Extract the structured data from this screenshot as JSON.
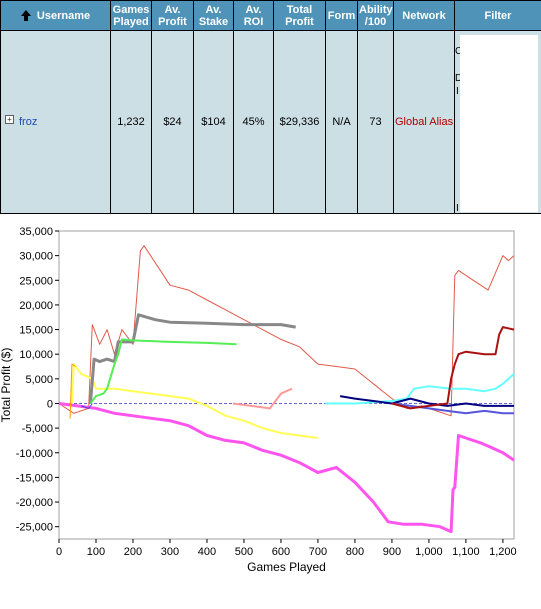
{
  "table": {
    "headers": {
      "username": "Username",
      "games_played": [
        "Games",
        "Played"
      ],
      "av_profit": [
        "Av.",
        "Profit"
      ],
      "av_stake": [
        "Av.",
        "Stake"
      ],
      "av_roi": [
        "Av.",
        "ROI"
      ],
      "total_profit": [
        "Total",
        "Profit"
      ],
      "form": "Form",
      "ability": [
        "Ability",
        "/100"
      ],
      "network": "Network",
      "filter": "Filter"
    },
    "row": {
      "username": "froz",
      "games_played": "1,232",
      "av_profit": "$24",
      "av_stake": "$104",
      "av_roi": "45%",
      "total_profit": "$29,336",
      "form": "N/A",
      "ability": "73",
      "network": "Global Alias"
    },
    "filter_visible_chars": [
      "C",
      "D",
      "I",
      "I"
    ]
  },
  "colors": {
    "header_bg": "#4f94b8",
    "row_bg": "#ccdfe5",
    "link": "#1b4bb0",
    "network": "#b00000"
  },
  "chart_data": {
    "type": "line",
    "xlabel": "Games Played",
    "ylabel": "Total Profit ($)",
    "xlim": [
      0,
      1230
    ],
    "ylim": [
      -27500,
      35000
    ],
    "x_ticks": [
      0,
      100,
      200,
      300,
      400,
      500,
      600,
      700,
      800,
      900,
      1000,
      1100,
      1200
    ],
    "x_tick_labels": [
      "0",
      "100",
      "200",
      "300",
      "400",
      "500",
      "600",
      "700",
      "800",
      "900",
      "1,000",
      "1,100",
      "1,200"
    ],
    "y_ticks": [
      35000,
      30000,
      25000,
      20000,
      15000,
      10000,
      5000,
      0,
      -5000,
      -10000,
      -15000,
      -20000,
      -25000
    ],
    "y_tick_labels": [
      "35,000",
      "30,000",
      "25,000",
      "20,000",
      "15,000",
      "10,000",
      "5,000",
      "0",
      "-5,000",
      "-10,000",
      "-15,000",
      "-20,000",
      "-25,000"
    ],
    "zero_line": true,
    "series": [
      {
        "color": "#e05a4a",
        "width": 1,
        "points": [
          [
            0,
            0
          ],
          [
            40,
            -2000
          ],
          [
            80,
            -1000
          ],
          [
            90,
            16000
          ],
          [
            110,
            12000
          ],
          [
            130,
            15000
          ],
          [
            150,
            10000
          ],
          [
            170,
            15000
          ],
          [
            200,
            12000
          ],
          [
            220,
            31000
          ],
          [
            230,
            32000
          ],
          [
            300,
            24000
          ],
          [
            350,
            23000
          ],
          [
            400,
            21000
          ],
          [
            450,
            19000
          ],
          [
            500,
            17000
          ],
          [
            550,
            15000
          ],
          [
            600,
            13000
          ],
          [
            650,
            11500
          ],
          [
            700,
            8000
          ],
          [
            750,
            7500
          ],
          [
            800,
            7000
          ],
          [
            850,
            4000
          ],
          [
            900,
            1000
          ],
          [
            940,
            -1000
          ],
          [
            980,
            -500
          ],
          [
            1020,
            -1500
          ],
          [
            1060,
            -2500
          ],
          [
            1070,
            26000
          ],
          [
            1080,
            27000
          ],
          [
            1120,
            25000
          ],
          [
            1160,
            23000
          ],
          [
            1200,
            30000
          ],
          [
            1215,
            29000
          ],
          [
            1230,
            30000
          ]
        ]
      },
      {
        "color": "#ff55ee",
        "width": 3,
        "points": [
          [
            0,
            0
          ],
          [
            50,
            -500
          ],
          [
            100,
            -1000
          ],
          [
            150,
            -2000
          ],
          [
            200,
            -2500
          ],
          [
            250,
            -3000
          ],
          [
            300,
            -3500
          ],
          [
            350,
            -4500
          ],
          [
            400,
            -6500
          ],
          [
            450,
            -7500
          ],
          [
            500,
            -8000
          ],
          [
            550,
            -9500
          ],
          [
            600,
            -10500
          ],
          [
            650,
            -12000
          ],
          [
            700,
            -14000
          ],
          [
            750,
            -13000
          ],
          [
            800,
            -16000
          ],
          [
            850,
            -20000
          ],
          [
            890,
            -24000
          ],
          [
            930,
            -24500
          ],
          [
            980,
            -24500
          ],
          [
            1030,
            -25000
          ],
          [
            1060,
            -26000
          ],
          [
            1065,
            -17500
          ],
          [
            1070,
            -17000
          ],
          [
            1080,
            -6500
          ],
          [
            1100,
            -7000
          ],
          [
            1140,
            -8000
          ],
          [
            1170,
            -9000
          ],
          [
            1200,
            -10000
          ],
          [
            1230,
            -11500
          ]
        ]
      },
      {
        "color": "#ffff55",
        "width": 2,
        "points": [
          [
            35,
            0
          ],
          [
            40,
            8000
          ],
          [
            60,
            6000
          ],
          [
            90,
            5000
          ],
          [
            100,
            3000
          ],
          [
            150,
            3000
          ],
          [
            200,
            2500
          ],
          [
            250,
            2000
          ],
          [
            300,
            1500
          ],
          [
            350,
            1000
          ],
          [
            400,
            -500
          ],
          [
            450,
            -2500
          ],
          [
            500,
            -3500
          ],
          [
            550,
            -5000
          ],
          [
            600,
            -6000
          ],
          [
            650,
            -6500
          ],
          [
            700,
            -7000
          ]
        ]
      },
      {
        "color": "#888888",
        "width": 3,
        "points": [
          [
            85,
            0
          ],
          [
            95,
            9000
          ],
          [
            110,
            8500
          ],
          [
            130,
            9000
          ],
          [
            150,
            8500
          ],
          [
            160,
            12500
          ],
          [
            200,
            12500
          ],
          [
            215,
            18000
          ],
          [
            260,
            17000
          ],
          [
            300,
            16500
          ],
          [
            400,
            16300
          ],
          [
            500,
            16000
          ],
          [
            600,
            16000
          ],
          [
            640,
            15500
          ]
        ]
      },
      {
        "color": "#55ee55",
        "width": 2,
        "points": [
          [
            85,
            0
          ],
          [
            100,
            1500
          ],
          [
            120,
            2000
          ],
          [
            130,
            3000
          ],
          [
            150,
            8000
          ],
          [
            160,
            10000
          ],
          [
            170,
            13000
          ],
          [
            200,
            12800
          ],
          [
            300,
            12500
          ],
          [
            400,
            12300
          ],
          [
            480,
            12000
          ]
        ]
      },
      {
        "color": "#ff9900",
        "width": 1,
        "points": [
          [
            30,
            -3000
          ],
          [
            35,
            8000
          ],
          [
            45,
            7500
          ]
        ]
      },
      {
        "color": "#ff9999",
        "width": 2,
        "points": [
          [
            470,
            0
          ],
          [
            520,
            -500
          ],
          [
            570,
            -1000
          ],
          [
            600,
            2000
          ],
          [
            630,
            3000
          ]
        ]
      },
      {
        "color": "#66ffff",
        "width": 2,
        "points": [
          [
            720,
            0
          ],
          [
            800,
            0
          ],
          [
            900,
            500
          ],
          [
            940,
            1000
          ],
          [
            960,
            3000
          ],
          [
            1000,
            3500
          ],
          [
            1060,
            3000
          ],
          [
            1100,
            3000
          ],
          [
            1150,
            2500
          ],
          [
            1180,
            3000
          ],
          [
            1200,
            4000
          ],
          [
            1230,
            6000
          ]
        ]
      },
      {
        "color": "#000080",
        "width": 2,
        "points": [
          [
            760,
            1500
          ],
          [
            800,
            1000
          ],
          [
            850,
            500
          ],
          [
            900,
            0
          ],
          [
            950,
            1000
          ],
          [
            1000,
            0
          ],
          [
            1050,
            -500
          ],
          [
            1100,
            0
          ],
          [
            1150,
            -500
          ],
          [
            1200,
            -500
          ],
          [
            1230,
            -500
          ]
        ]
      },
      {
        "color": "#5555dd",
        "width": 2,
        "points": [
          [
            900,
            0
          ],
          [
            950,
            -500
          ],
          [
            1000,
            -1000
          ],
          [
            1050,
            -1500
          ],
          [
            1100,
            -2000
          ],
          [
            1150,
            -1500
          ],
          [
            1200,
            -2000
          ],
          [
            1230,
            -2000
          ]
        ]
      },
      {
        "color": "#aa1111",
        "width": 2,
        "points": [
          [
            900,
            0
          ],
          [
            950,
            -1000
          ],
          [
            1000,
            -500
          ],
          [
            1050,
            0
          ],
          [
            1060,
            5000
          ],
          [
            1070,
            8000
          ],
          [
            1080,
            10000
          ],
          [
            1100,
            10500
          ],
          [
            1150,
            10000
          ],
          [
            1180,
            10000
          ],
          [
            1190,
            14000
          ],
          [
            1200,
            15500
          ],
          [
            1230,
            15000
          ]
        ]
      },
      {
        "color": "#4444cc",
        "width": 1,
        "points": [
          [
            60,
            -500
          ],
          [
            80,
            -1000
          ],
          [
            90,
            0
          ]
        ]
      }
    ]
  }
}
